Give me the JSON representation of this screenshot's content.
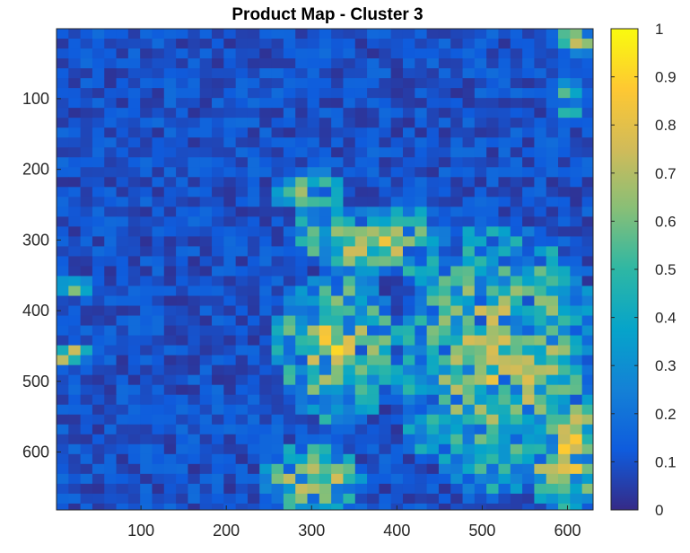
{
  "chart_data": {
    "type": "heatmap",
    "title": "Product Map - Cluster 3",
    "xlabel": "",
    "ylabel": "",
    "xlim": [
      1,
      630
    ],
    "ylim": [
      1,
      682
    ],
    "y_reversed": true,
    "x_ticks": [
      100,
      200,
      300,
      400,
      500,
      600
    ],
    "y_ticks": [
      100,
      200,
      300,
      400,
      500,
      600
    ],
    "colorbar": {
      "min": 0,
      "max": 1,
      "ticks": [
        0,
        0.1,
        0.2,
        0.3,
        0.4,
        0.5,
        0.6,
        0.7,
        0.8,
        0.9,
        1
      ],
      "tick_labels": [
        "0",
        "0.1",
        "0.2",
        "0.3",
        "0.4",
        "0.5",
        "0.6",
        "0.7",
        "0.8",
        "0.9",
        "1"
      ],
      "colormap": "parula",
      "colormap_stops": [
        "#352a87",
        "#0f5cdd",
        "#1481d6",
        "#06a4ca",
        "#2eb7a4",
        "#87bf77",
        "#d1bb59",
        "#fec832",
        "#f9fb0e"
      ]
    },
    "grid": false,
    "legend": "colorbar-right",
    "regions": [
      {
        "desc": "background low",
        "x": [
          1,
          630
        ],
        "y": [
          1,
          682
        ],
        "value": 0.08
      },
      {
        "desc": "high cluster main",
        "x": [
          380,
          630
        ],
        "y": [
          300,
          682
        ],
        "value": 0.6
      },
      {
        "desc": "high cluster west",
        "x": [
          250,
          400
        ],
        "y": [
          330,
          560
        ],
        "value": 0.7
      },
      {
        "desc": "arm north",
        "x": [
          280,
          480
        ],
        "y": [
          200,
          340
        ],
        "value": 0.65
      },
      {
        "desc": "south-west lobe",
        "x": [
          240,
          360
        ],
        "y": [
          580,
          682
        ],
        "value": 0.7
      },
      {
        "desc": "left edge spot 1",
        "x": [
          1,
          40
        ],
        "y": [
          350,
          380
        ],
        "value": 0.6
      },
      {
        "desc": "left edge spot 2",
        "x": [
          1,
          40
        ],
        "y": [
          450,
          480
        ],
        "value": 0.7
      },
      {
        "desc": "top-right corner",
        "x": [
          590,
          630
        ],
        "y": [
          1,
          40
        ],
        "value": 0.7
      }
    ]
  }
}
